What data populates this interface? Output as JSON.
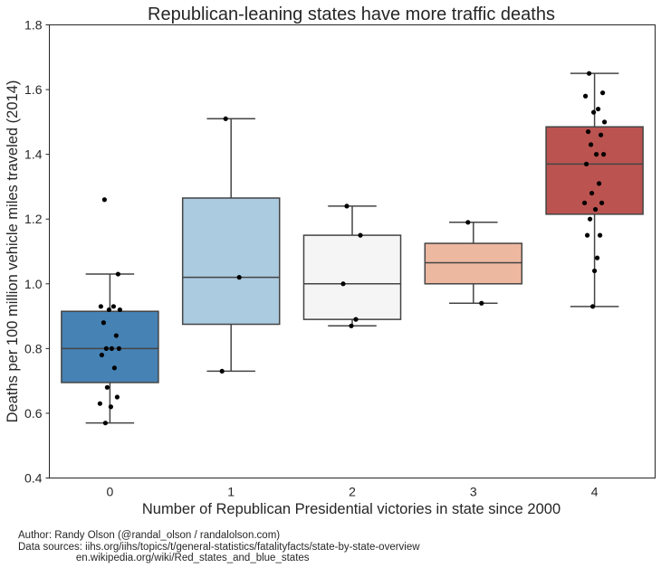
{
  "chart_data": {
    "type": "box",
    "title": "Republican-leaning states have more traffic deaths",
    "xlabel": "Number of Republican Presidential victories in state since 2000",
    "ylabel": "Deaths per 100 million vehicle miles traveled (2014)",
    "categories": [
      "0",
      "1",
      "2",
      "3",
      "4"
    ],
    "ylim": [
      0.4,
      1.8
    ],
    "yticks": [
      "0.4",
      "0.6",
      "0.8",
      "1.0",
      "1.2",
      "1.4",
      "1.6",
      "1.8"
    ],
    "grid": false,
    "colors": [
      "#4682b4",
      "#aacbe0",
      "#f5f5f5",
      "#edb8a0",
      "#bb5350"
    ],
    "boxes": [
      {
        "category": "0",
        "whisker_low": 0.57,
        "q1": 0.695,
        "median": 0.8,
        "q3": 0.915,
        "whisker_high": 1.03
      },
      {
        "category": "1",
        "whisker_low": 0.73,
        "q1": 0.875,
        "median": 1.02,
        "q3": 1.265,
        "whisker_high": 1.51
      },
      {
        "category": "2",
        "whisker_low": 0.87,
        "q1": 0.89,
        "median": 1.0,
        "q3": 1.15,
        "whisker_high": 1.24
      },
      {
        "category": "3",
        "whisker_low": 0.94,
        "q1": 1.0,
        "median": 1.065,
        "q3": 1.125,
        "whisker_high": 1.19
      },
      {
        "category": "4",
        "whisker_low": 0.93,
        "q1": 1.215,
        "median": 1.37,
        "q3": 1.485,
        "whisker_high": 1.65
      }
    ],
    "points": [
      {
        "category": "0",
        "values": [
          1.26,
          1.03,
          0.93,
          0.93,
          0.92,
          0.92,
          0.88,
          0.84,
          0.8,
          0.8,
          0.8,
          0.78,
          0.74,
          0.68,
          0.65,
          0.63,
          0.62,
          0.57
        ]
      },
      {
        "category": "1",
        "values": [
          1.51,
          1.02,
          0.73
        ]
      },
      {
        "category": "2",
        "values": [
          1.24,
          1.15,
          1.0,
          0.89,
          0.87
        ]
      },
      {
        "category": "3",
        "values": [
          1.19,
          0.94
        ]
      },
      {
        "category": "4",
        "values": [
          1.65,
          1.59,
          1.58,
          1.54,
          1.53,
          1.5,
          1.47,
          1.46,
          1.43,
          1.4,
          1.4,
          1.37,
          1.31,
          1.28,
          1.25,
          1.25,
          1.23,
          1.2,
          1.15,
          1.15,
          1.08,
          1.04,
          0.93
        ]
      }
    ]
  },
  "credits": {
    "line1": "Author: Randy Olson (@randal_olson / randalolson.com)",
    "line2": "Data sources: iihs.org/iihs/topics/t/general-statistics/fatalityfacts/state-by-state-overview",
    "line3": "                    en.wikipedia.org/wiki/Red_states_and_blue_states"
  }
}
